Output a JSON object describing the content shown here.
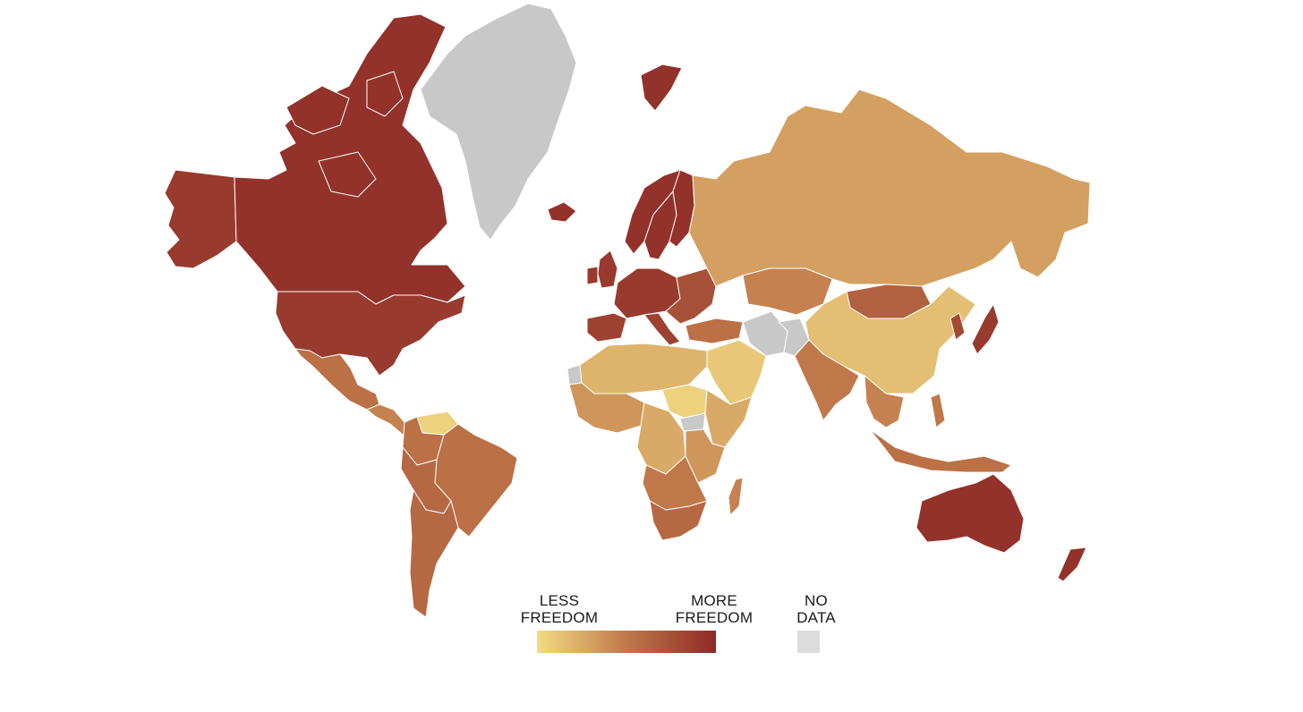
{
  "colors": {
    "less_freedom": "#f2dc84",
    "mid_freedom": "#c0784a",
    "more_freedom": "#8e2a26",
    "no_data": "#c8c8c8",
    "no_data_legend": "#dcdcdc"
  },
  "legend": {
    "less_label": "LESS\nFREEDOM",
    "more_label": "MORE\nFREEDOM",
    "no_data_label": "NO\nDATA"
  },
  "regions": [
    {
      "name": "Canada",
      "level": 0.95
    },
    {
      "name": "Alaska (USA)",
      "level": 0.9
    },
    {
      "name": "United States",
      "level": 0.9
    },
    {
      "name": "Greenland",
      "level": null
    },
    {
      "name": "Iceland",
      "level": 0.95
    },
    {
      "name": "Svalbard",
      "level": 0.95
    },
    {
      "name": "Norway",
      "level": 0.95
    },
    {
      "name": "Sweden",
      "level": 0.95
    },
    {
      "name": "Finland",
      "level": 0.95
    },
    {
      "name": "United Kingdom",
      "level": 0.9
    },
    {
      "name": "Ireland",
      "level": 0.9
    },
    {
      "name": "Western Europe",
      "level": 0.9
    },
    {
      "name": "Iberia",
      "level": 0.85
    },
    {
      "name": "Italy",
      "level": 0.85
    },
    {
      "name": "Eastern Europe",
      "level": 0.75
    },
    {
      "name": "Turkey",
      "level": 0.55
    },
    {
      "name": "Russia",
      "level": 0.3
    },
    {
      "name": "Kazakhstan",
      "level": 0.45
    },
    {
      "name": "Mongolia",
      "level": 0.65
    },
    {
      "name": "China",
      "level": 0.15
    },
    {
      "name": "Korea",
      "level": 0.8
    },
    {
      "name": "Japan",
      "level": 0.9
    },
    {
      "name": "Iran",
      "level": null
    },
    {
      "name": "Afghanistan",
      "level": null
    },
    {
      "name": "Arabian Peninsula",
      "level": 0.1
    },
    {
      "name": "India",
      "level": 0.5
    },
    {
      "name": "Southeast Asia",
      "level": 0.45
    },
    {
      "name": "Indonesia",
      "level": 0.55
    },
    {
      "name": "Philippines",
      "level": 0.5
    },
    {
      "name": "Australia",
      "level": 0.95
    },
    {
      "name": "New Zealand",
      "level": 0.95
    },
    {
      "name": "Mexico",
      "level": 0.55
    },
    {
      "name": "Central America",
      "level": 0.45
    },
    {
      "name": "Venezuela",
      "level": 0.05
    },
    {
      "name": "Colombia",
      "level": 0.55
    },
    {
      "name": "Brazil",
      "level": 0.55
    },
    {
      "name": "Andes",
      "level": 0.6
    },
    {
      "name": "Argentina & Chile",
      "level": 0.6
    },
    {
      "name": "North Africa",
      "level": 0.2
    },
    {
      "name": "West Africa",
      "level": 0.35
    },
    {
      "name": "Sudan",
      "level": 0.05
    },
    {
      "name": "Horn of Africa",
      "level": 0.25
    },
    {
      "name": "Central Africa",
      "level": 0.25
    },
    {
      "name": "East Africa",
      "level": 0.35
    },
    {
      "name": "Southern Africa",
      "level": 0.5
    },
    {
      "name": "South Africa",
      "level": 0.6
    },
    {
      "name": "Madagascar",
      "level": 0.45
    },
    {
      "name": "Western Sahara",
      "level": null
    },
    {
      "name": "South Sudan",
      "level": null
    }
  ]
}
